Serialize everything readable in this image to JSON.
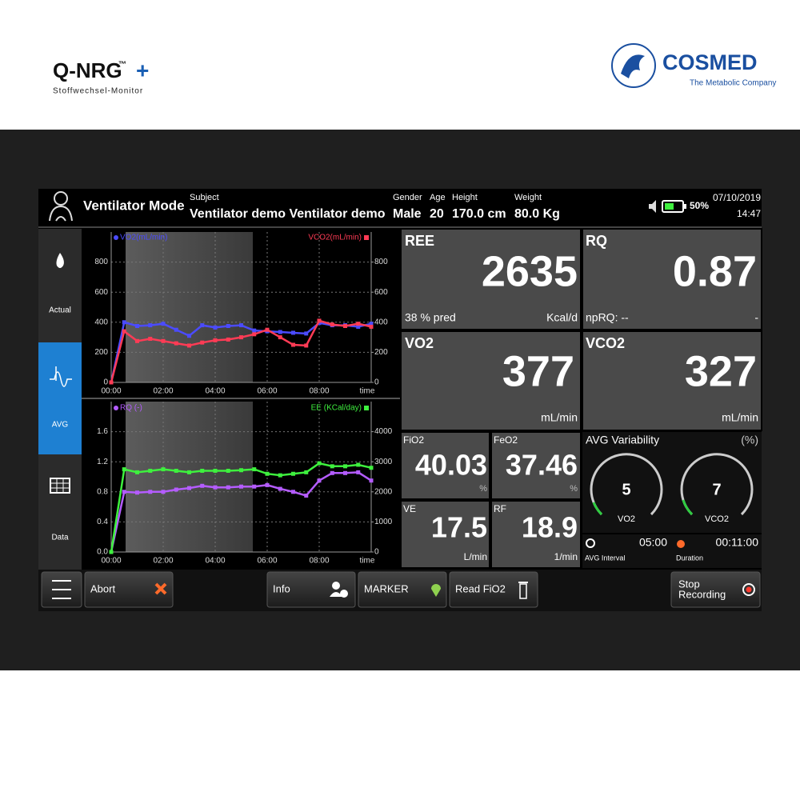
{
  "brand": {
    "product": "Q-NRG",
    "tm": "™",
    "plus": "+",
    "subtitle": "Stoffwechsel-Monitor",
    "company": "COSMED",
    "tagline": "The Metabolic Company"
  },
  "header": {
    "mode": "Ventilator Mode",
    "subject_label": "Subject",
    "subject": "Ventilator demo Ventilator demo",
    "gender_label": "Gender",
    "gender": "Male",
    "age_label": "Age",
    "age": "20",
    "height_label": "Height",
    "height": "170.0 cm",
    "weight_label": "Weight",
    "weight": "80.0 Kg",
    "battery": "50%",
    "date": "07/10/2019",
    "time": "14:47"
  },
  "sidebar": [
    "Actual",
    "AVG",
    "Data"
  ],
  "chart_data": [
    {
      "type": "line",
      "xlabel": "time",
      "x": [
        0,
        0.5,
        1,
        1.5,
        2,
        2.5,
        3,
        3.5,
        4,
        4.5,
        5,
        5.5,
        6,
        6.5,
        7,
        7.5,
        8,
        8.5,
        9,
        9.5,
        10
      ],
      "xlim": [
        0,
        10
      ],
      "xticks": [
        {
          "value": 0,
          "label": "00:00"
        },
        {
          "value": 2,
          "label": "02:00"
        },
        {
          "value": 4,
          "label": "04:00"
        },
        {
          "value": 6,
          "label": "06:00"
        },
        {
          "value": 8,
          "label": "08:00"
        }
      ],
      "ylim": [
        0,
        1000
      ],
      "yticks": [
        0,
        200,
        400,
        600,
        800
      ],
      "y2lim": [
        0,
        1000
      ],
      "y2ticks": [
        0,
        200,
        400,
        600,
        800
      ],
      "grid": true,
      "series": [
        {
          "name": "VO2(mL/min)",
          "color": "#4b4bff",
          "values": [
            0,
            400,
            375,
            380,
            390,
            350,
            310,
            380,
            365,
            375,
            380,
            345,
            340,
            335,
            330,
            325,
            395,
            380,
            380,
            370,
            390
          ]
        },
        {
          "name": "VCO2(mL/min)",
          "color": "#ff3b55",
          "axis": "y2",
          "values": [
            0,
            340,
            275,
            290,
            275,
            260,
            245,
            265,
            280,
            285,
            300,
            320,
            350,
            300,
            250,
            245,
            410,
            385,
            375,
            390,
            370
          ]
        }
      ]
    },
    {
      "type": "line",
      "xlabel": "time",
      "x": [
        0,
        0.5,
        1,
        1.5,
        2,
        2.5,
        3,
        3.5,
        4,
        4.5,
        5,
        5.5,
        6,
        6.5,
        7,
        7.5,
        8,
        8.5,
        9,
        9.5,
        10
      ],
      "xlim": [
        0,
        10
      ],
      "xticks": [
        {
          "value": 0,
          "label": "00:00"
        },
        {
          "value": 2,
          "label": "02:00"
        },
        {
          "value": 4,
          "label": "04:00"
        },
        {
          "value": 6,
          "label": "06:00"
        },
        {
          "value": 8,
          "label": "08:00"
        }
      ],
      "ylim": [
        0,
        2
      ],
      "yticks": [
        {
          "value": 0,
          "label": "0.0"
        },
        0.4,
        0.8,
        1.2,
        1.6
      ],
      "y2lim": [
        0,
        5000
      ],
      "y2ticks": [
        0,
        1000,
        2000,
        3000,
        4000
      ],
      "grid": true,
      "series": [
        {
          "name": "RQ (-)",
          "color": "#b45cff",
          "values": [
            0,
            0.8,
            0.79,
            0.8,
            0.8,
            0.83,
            0.85,
            0.88,
            0.86,
            0.86,
            0.87,
            0.87,
            0.89,
            0.84,
            0.8,
            0.75,
            0.95,
            1.05,
            1.05,
            1.06,
            0.95
          ]
        },
        {
          "name": "EE (KCal/day)",
          "color": "#3ef03e",
          "axis": "y2",
          "values": [
            0,
            2750,
            2650,
            2700,
            2750,
            2700,
            2650,
            2700,
            2700,
            2700,
            2720,
            2750,
            2600,
            2550,
            2600,
            2650,
            2950,
            2850,
            2850,
            2900,
            2800
          ]
        }
      ]
    }
  ],
  "panels": {
    "ree": {
      "label": "REE",
      "value": "2635",
      "pred": "38 % pred",
      "unit": "Kcal/d"
    },
    "rq": {
      "label": "RQ",
      "value": "0.87",
      "np": "npRQ: --",
      "unit": "-"
    },
    "vo2": {
      "label": "VO2",
      "value": "377",
      "unit": "mL/min"
    },
    "vco2": {
      "label": "VCO2",
      "value": "327",
      "unit": "mL/min"
    },
    "fio2": {
      "label": "FiO2",
      "value": "40.03",
      "unit": "%"
    },
    "feo2": {
      "label": "FeO2",
      "value": "37.46",
      "unit": "%"
    },
    "ve": {
      "label": "VE",
      "value": "17.5",
      "unit": "L/min"
    },
    "rf": {
      "label": "RF",
      "value": "18.9",
      "unit": "1/min"
    },
    "variability": {
      "title": "AVG Variability",
      "unit": "(%)",
      "vo2": "5",
      "vo2_label": "VO2",
      "vco2": "7",
      "vco2_label": "VCO2"
    },
    "interval": {
      "value": "05:00",
      "label": "AVG Interval"
    },
    "duration": {
      "value": "00:11:00",
      "label": "Duration"
    }
  },
  "buttons": {
    "abort": "Abort",
    "info": "Info",
    "marker": "MARKER",
    "read_fio2": "Read FiO2",
    "stop": [
      "Stop",
      "Recording"
    ]
  }
}
